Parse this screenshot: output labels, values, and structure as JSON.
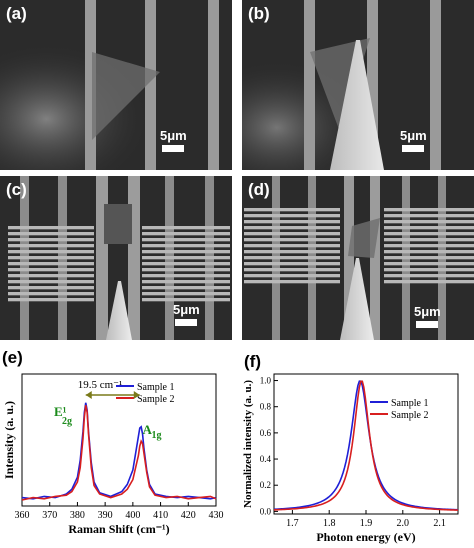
{
  "figure": {
    "panels": [
      {
        "label": "(a)",
        "scale": "5μm"
      },
      {
        "label": "(b)",
        "scale": "5μm"
      },
      {
        "label": "(c)",
        "scale": "5μm"
      },
      {
        "label": "(d)",
        "scale": "5μm"
      }
    ],
    "panel_e_label": "(e)",
    "panel_f_label": "(f)"
  },
  "chart_data": [
    {
      "type": "line",
      "panel": "(e)",
      "xlabel": "Raman Shift (cm⁻¹)",
      "ylabel": "Intensity (a. u.)",
      "xlim": [
        360,
        430
      ],
      "xticks": [
        360,
        370,
        380,
        390,
        400,
        410,
        420,
        430
      ],
      "ylim": [
        0,
        1.1
      ],
      "y_ticks_shown": false,
      "legend": "top-right",
      "annotations": {
        "separation": "19.5 cm⁻¹",
        "peak1": "E¹",
        "peak1_sub": "2g",
        "peak2": "A",
        "peak2_sub": "1g"
      },
      "series": [
        {
          "name": "Sample 1",
          "color": "#1f1fd6",
          "x": [
            360,
            364,
            368,
            372,
            376,
            378,
            380,
            381,
            382,
            382.5,
            383,
            383.5,
            384,
            385,
            386,
            388,
            392,
            396,
            398,
            400,
            401,
            402,
            402.5,
            403,
            403.5,
            404,
            405,
            406,
            408,
            412,
            416,
            420,
            424,
            428,
            430
          ],
          "y": [
            0.07,
            0.06,
            0.08,
            0.07,
            0.1,
            0.14,
            0.24,
            0.38,
            0.62,
            0.78,
            0.86,
            0.8,
            0.62,
            0.36,
            0.2,
            0.11,
            0.08,
            0.12,
            0.18,
            0.3,
            0.44,
            0.58,
            0.65,
            0.66,
            0.6,
            0.48,
            0.3,
            0.18,
            0.1,
            0.08,
            0.07,
            0.08,
            0.07,
            0.06,
            0.07
          ]
        },
        {
          "name": "Sample 2",
          "color": "#d81f1f",
          "x": [
            360,
            364,
            368,
            372,
            376,
            378,
            380,
            381,
            382,
            382.5,
            383,
            383.5,
            384,
            385,
            386,
            388,
            392,
            396,
            398,
            400,
            401,
            402,
            402.5,
            403,
            403.5,
            404,
            405,
            406,
            408,
            412,
            416,
            420,
            424,
            428,
            430
          ],
          "y": [
            0.05,
            0.07,
            0.06,
            0.08,
            0.09,
            0.12,
            0.2,
            0.32,
            0.56,
            0.74,
            0.84,
            0.78,
            0.6,
            0.32,
            0.17,
            0.1,
            0.07,
            0.1,
            0.14,
            0.22,
            0.32,
            0.42,
            0.5,
            0.54,
            0.52,
            0.44,
            0.28,
            0.16,
            0.09,
            0.07,
            0.08,
            0.06,
            0.07,
            0.08,
            0.06
          ]
        }
      ]
    },
    {
      "type": "line",
      "panel": "(f)",
      "xlabel": "Photon energy (eV)",
      "ylabel": "Normalized intensity (a. u.)",
      "xlim": [
        1.65,
        2.15
      ],
      "xticks": [
        1.7,
        1.8,
        1.9,
        2.0,
        2.1
      ],
      "ylim": [
        -0.02,
        1.05
      ],
      "yticks": [
        0.0,
        0.2,
        0.4,
        0.6,
        0.8,
        1.0
      ],
      "legend": "top-right",
      "series": [
        {
          "name": "Sample 1",
          "color": "#1f1fd6",
          "center": 1.884,
          "hwhm": 0.03
        },
        {
          "name": "Sample 2",
          "color": "#d81f1f",
          "center": 1.888,
          "hwhm": 0.026
        }
      ]
    }
  ]
}
